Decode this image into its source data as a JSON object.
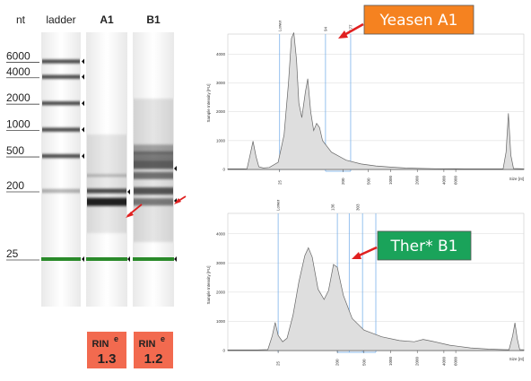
{
  "gel": {
    "header_nt": "nt",
    "lanes": [
      {
        "name": "ladder"
      },
      {
        "name": "A1"
      },
      {
        "name": "B1"
      }
    ],
    "size_labels": [
      "6000",
      "4000",
      "2000",
      "1000",
      "500",
      "200",
      "25"
    ],
    "ladder_bands_nt": [
      6000,
      4000,
      2000,
      1000,
      500,
      200,
      25
    ],
    "a1_bands_nt": [
      300,
      200,
      150,
      25
    ],
    "b1_bands_nt": [
      600,
      500,
      400,
      300,
      200,
      150,
      25
    ],
    "rin_label": "RIN",
    "rin_superscript": "e",
    "rin_values": [
      "1.3",
      "1.2"
    ],
    "colors": {
      "marker_band": "#2a8a2a",
      "rin_box": "#f26a4f",
      "arrow": "#e02020"
    }
  },
  "chart_data": [
    {
      "type": "area",
      "callout": "Yeasen A1",
      "callout_color": "#f58220",
      "yticks": [
        0,
        1000,
        2000,
        3000,
        4000
      ],
      "ylim": [
        0,
        4700
      ],
      "ylabel": "Sample Intensity [FU]",
      "xlabel": "Size [nt]",
      "xticks": [
        "25",
        "200",
        "500",
        "1000",
        "2000",
        "4000",
        "6000"
      ],
      "annotations": [
        "Lower",
        "94",
        "177"
      ],
      "points": [
        [
          0,
          18
        ],
        [
          4,
          18
        ],
        [
          6.5,
          25
        ],
        [
          7.5,
          500
        ],
        [
          8.5,
          980
        ],
        [
          9.5,
          450
        ],
        [
          10.5,
          90
        ],
        [
          12,
          50
        ],
        [
          14,
          70
        ],
        [
          17,
          250
        ],
        [
          19,
          1200
        ],
        [
          20.5,
          3000
        ],
        [
          21.5,
          4550
        ],
        [
          22.3,
          4750
        ],
        [
          23.2,
          3800
        ],
        [
          24,
          2300
        ],
        [
          25,
          1800
        ],
        [
          26.2,
          2700
        ],
        [
          27,
          3150
        ],
        [
          28,
          2000
        ],
        [
          29,
          1350
        ],
        [
          30,
          1600
        ],
        [
          31,
          1450
        ],
        [
          32,
          1000
        ],
        [
          35,
          600
        ],
        [
          40,
          320
        ],
        [
          45,
          190
        ],
        [
          50,
          120
        ],
        [
          55,
          80
        ],
        [
          60,
          50
        ],
        [
          65,
          35
        ],
        [
          70,
          25
        ],
        [
          80,
          22
        ],
        [
          90,
          20
        ],
        [
          93,
          20
        ],
        [
          94,
          600
        ],
        [
          94.8,
          1950
        ],
        [
          95.6,
          500
        ],
        [
          96.5,
          30
        ],
        [
          100,
          20
        ]
      ]
    },
    {
      "type": "area",
      "callout": "Ther* B1",
      "callout_color": "#1aa35a",
      "yticks": [
        0,
        1000,
        2000,
        3000,
        4000
      ],
      "ylim": [
        0,
        4700
      ],
      "ylabel": "Sample Intensity [FU]",
      "xlabel": "Size [nt]",
      "xticks": [
        "25",
        "200",
        "500",
        "1000",
        "2000",
        "4000",
        "6000"
      ],
      "annotations": [
        "Lower",
        "136",
        "303"
      ],
      "points": [
        [
          0,
          18
        ],
        [
          10,
          20
        ],
        [
          13.5,
          30
        ],
        [
          15,
          500
        ],
        [
          16,
          960
        ],
        [
          17,
          520
        ],
        [
          18.5,
          300
        ],
        [
          20,
          420
        ],
        [
          22,
          1200
        ],
        [
          24,
          2350
        ],
        [
          26,
          3250
        ],
        [
          27.2,
          3520
        ],
        [
          28.5,
          3200
        ],
        [
          30.5,
          2100
        ],
        [
          32.5,
          1750
        ],
        [
          34,
          2050
        ],
        [
          35.7,
          2950
        ],
        [
          37,
          2850
        ],
        [
          39,
          1900
        ],
        [
          42,
          1100
        ],
        [
          46,
          700
        ],
        [
          52,
          470
        ],
        [
          58,
          340
        ],
        [
          63,
          300
        ],
        [
          66,
          380
        ],
        [
          69,
          320
        ],
        [
          75,
          180
        ],
        [
          82,
          90
        ],
        [
          88,
          50
        ],
        [
          93,
          30
        ],
        [
          95,
          28
        ],
        [
          96.2,
          500
        ],
        [
          97,
          950
        ],
        [
          97.8,
          400
        ],
        [
          98.6,
          30
        ],
        [
          100,
          25
        ]
      ]
    }
  ]
}
